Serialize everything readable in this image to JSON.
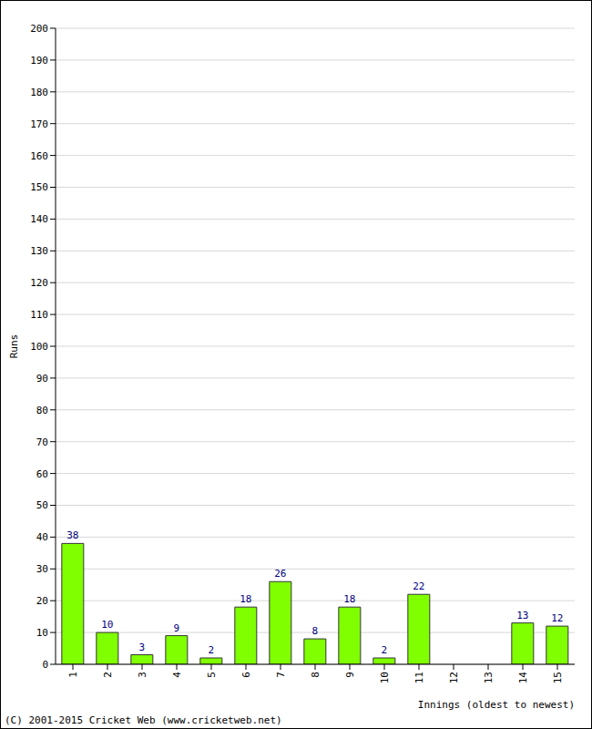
{
  "chart_data": {
    "type": "bar",
    "categories": [
      "1",
      "2",
      "3",
      "4",
      "5",
      "6",
      "7",
      "8",
      "9",
      "10",
      "11",
      "12",
      "13",
      "14",
      "15"
    ],
    "values": [
      38,
      10,
      3,
      9,
      2,
      18,
      26,
      8,
      18,
      2,
      22,
      0,
      0,
      13,
      12
    ],
    "color": "#80ff00",
    "ylim": [
      0,
      200
    ],
    "yticks": [
      0,
      10,
      20,
      30,
      40,
      50,
      60,
      70,
      80,
      90,
      100,
      110,
      120,
      130,
      140,
      150,
      160,
      170,
      180,
      190,
      200
    ],
    "y_label": "Runs",
    "x_label": "Innings (oldest to newest)",
    "annotations": [
      "(C) 2001-2015 Cricket Web (www.cricketweb.net)"
    ],
    "grid": true,
    "data_labels": true
  }
}
